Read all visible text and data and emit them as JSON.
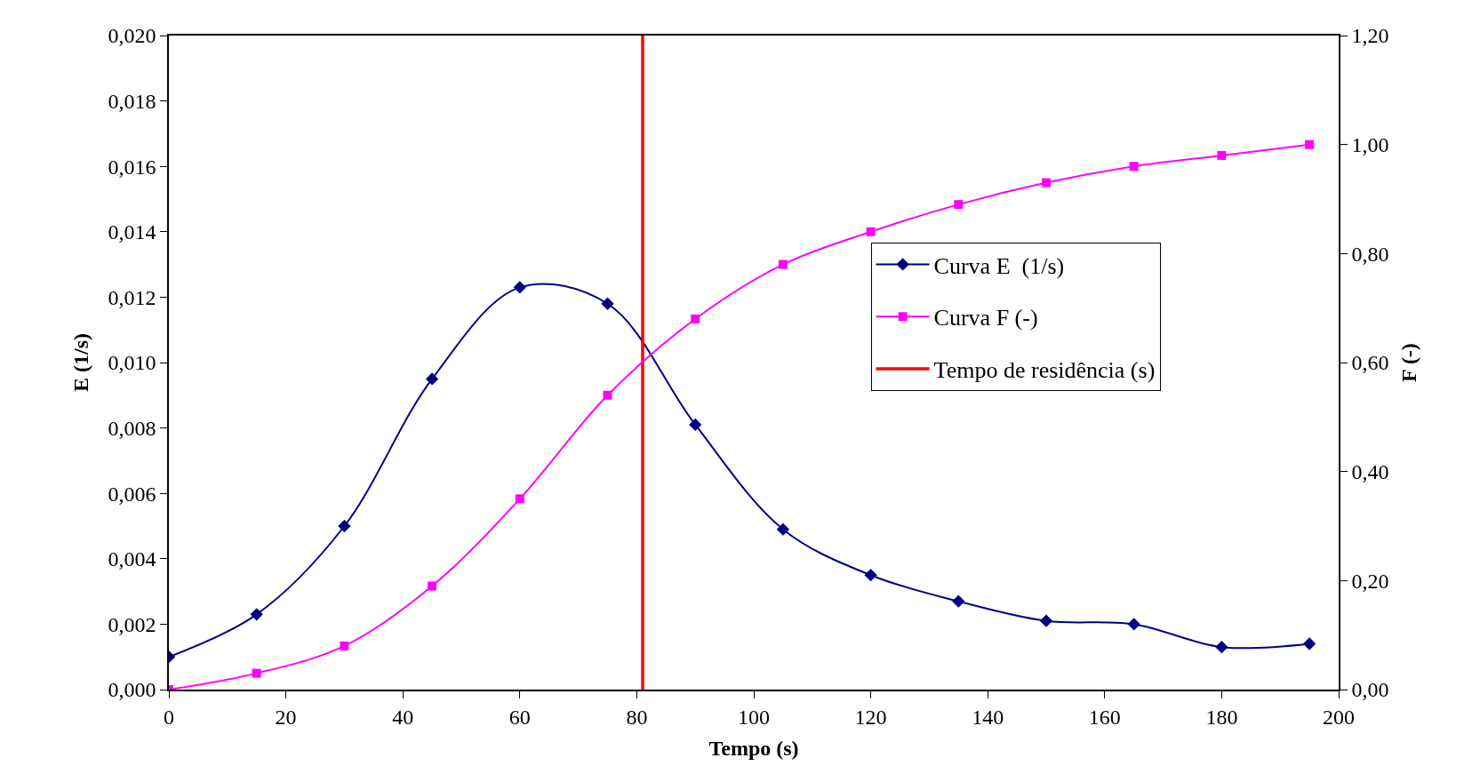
{
  "chart_data": {
    "type": "line",
    "xlabel": "Tempo (s)",
    "ylabel": "E (1/s)",
    "y2label": "F (-)",
    "x": [
      0,
      15,
      30,
      45,
      60,
      75,
      90,
      105,
      120,
      135,
      150,
      165,
      180,
      195
    ],
    "series": [
      {
        "name": "Curva E  (1/s)",
        "color": "#000080",
        "marker": "diamond",
        "values": [
          0.001,
          0.0023,
          0.005,
          0.0095,
          0.0123,
          0.0118,
          0.0081,
          0.0049,
          0.0035,
          0.0027,
          0.0021,
          0.002,
          0.0013,
          0.0014
        ]
      },
      {
        "name": "Curva F (-)",
        "color": "#ff00ff",
        "marker": "square",
        "axis": "y2",
        "values": [
          0,
          0.03,
          0.08,
          0.19,
          0.35,
          0.54,
          0.68,
          0.78,
          0.84,
          0.89,
          0.93,
          0.96,
          0.98,
          1.0
        ]
      },
      {
        "name": "Tempo de residência (s)",
        "color": "#ff0000",
        "marker": "none",
        "x": [
          81,
          81
        ],
        "values": [
          0,
          0.02
        ]
      }
    ],
    "xlim": [
      0,
      200
    ],
    "xticks": [
      0,
      20,
      40,
      60,
      80,
      100,
      120,
      140,
      160,
      180,
      200
    ],
    "ylim": [
      0,
      0.02
    ],
    "yticks": [
      {
        "value": 0,
        "label": "0,000"
      },
      {
        "value": 0.002,
        "label": "0,002"
      },
      {
        "value": 0.004,
        "label": "0,004"
      },
      {
        "value": 0.006,
        "label": "0,006"
      },
      {
        "value": 0.008,
        "label": "0,008"
      },
      {
        "value": 0.01,
        "label": "0,010"
      },
      {
        "value": 0.012,
        "label": "0,012"
      },
      {
        "value": 0.014,
        "label": "0,014"
      },
      {
        "value": 0.016,
        "label": "0,016"
      },
      {
        "value": 0.018,
        "label": "0,018"
      },
      {
        "value": 0.02,
        "label": "0,020"
      }
    ],
    "y2lim": [
      0,
      1.2
    ],
    "y2ticks": [
      {
        "value": 0,
        "label": "0,00"
      },
      {
        "value": 0.2,
        "label": "0,20"
      },
      {
        "value": 0.4,
        "label": "0,40"
      },
      {
        "value": 0.6,
        "label": "0,60"
      },
      {
        "value": 0.8,
        "label": "0,80"
      },
      {
        "value": 1.0,
        "label": "1,00"
      },
      {
        "value": 1.2,
        "label": "1,20"
      }
    ],
    "legend": "right",
    "line_style": "solid"
  }
}
